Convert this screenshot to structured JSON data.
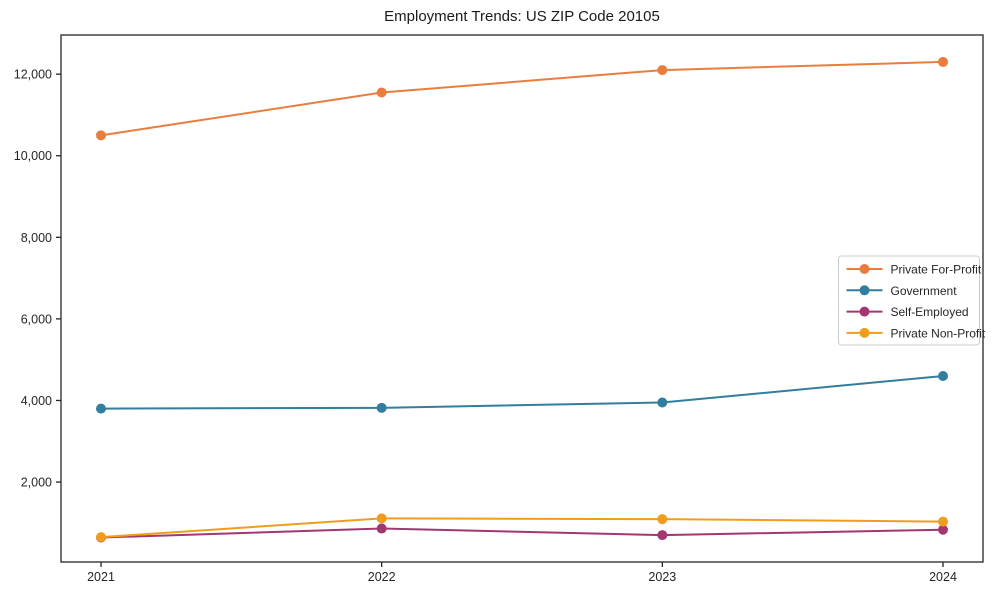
{
  "page": {
    "background": "#ffffff"
  },
  "chart_data": {
    "type": "line",
    "title": "Employment Trends: US ZIP Code 20105",
    "xlabel": "",
    "ylabel": "",
    "categories": [
      "2021",
      "2022",
      "2023",
      "2024"
    ],
    "series": [
      {
        "name": "Private For-Profit",
        "color": "#e87d3e",
        "values": [
          10500,
          11550,
          12100,
          12300
        ]
      },
      {
        "name": "Government",
        "color": "#317e9e",
        "values": [
          3800,
          3820,
          3950,
          4600
        ]
      },
      {
        "name": "Self-Employed",
        "color": "#a33771",
        "values": [
          640,
          860,
          700,
          830
        ]
      },
      {
        "name": "Private Non-Profit",
        "color": "#f09d1d",
        "values": [
          650,
          1110,
          1090,
          1030
        ]
      }
    ],
    "yticks": [
      2000,
      4000,
      6000,
      8000,
      10000,
      12000
    ],
    "ytick_labels": [
      "2,000",
      "4,000",
      "6,000",
      "8,000",
      "10,000",
      "12,000"
    ],
    "ylim": [
      40,
      12960
    ],
    "grid": false,
    "legend_position": "center right",
    "axis_color": "#262626",
    "legend_border_color": "#cccccc",
    "marker": "circle",
    "marker_radius": 5,
    "line_width": 2
  }
}
